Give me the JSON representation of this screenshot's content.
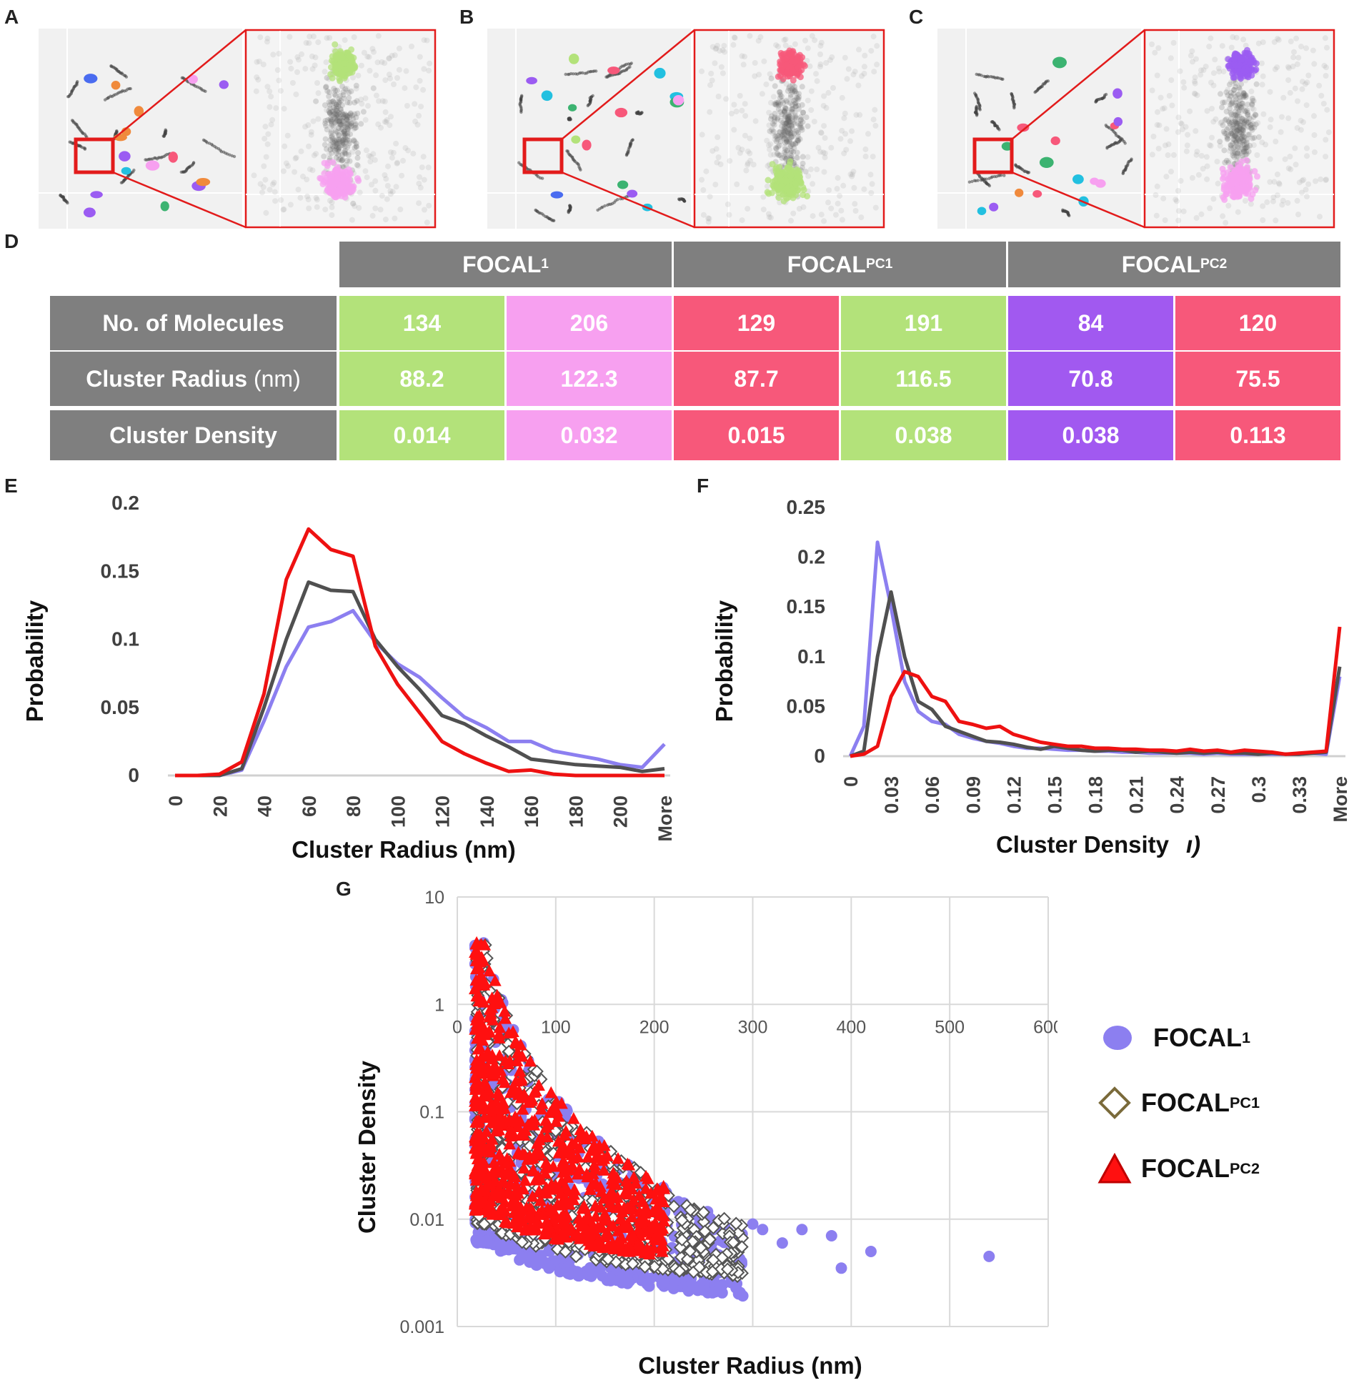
{
  "panels": {
    "A": "A",
    "B": "B",
    "C": "C",
    "D": "D",
    "E": "E",
    "F": "F",
    "G": "G"
  },
  "micrographs": [
    {
      "label": "A",
      "top_color": "#b3e27a",
      "bottom_color": "#f7a0f0"
    },
    {
      "label": "B",
      "top_color": "#f7587a",
      "bottom_color": "#b3e27a"
    },
    {
      "label": "C",
      "top_color": "#9b5cf2",
      "bottom_color": "#f7a0f0"
    }
  ],
  "table": {
    "groups": [
      {
        "name": "FOCAL",
        "sup": "1"
      },
      {
        "name": "FOCAL",
        "sup": "PC1"
      },
      {
        "name": "FOCAL",
        "sup": "PC2"
      }
    ],
    "rows": [
      {
        "label": "No. of Molecules",
        "unit": "",
        "values": [
          "134",
          "206",
          "129",
          "191",
          "84",
          "120"
        ]
      },
      {
        "label": "Cluster Radius",
        "unit": " (nm)",
        "values": [
          "88.2",
          "122.3",
          "87.7",
          "116.5",
          "70.8",
          "75.5"
        ]
      },
      {
        "label": "Cluster Density",
        "unit": "",
        "values": [
          "0.014",
          "0.032",
          "0.015",
          "0.038",
          "0.038",
          "0.113"
        ]
      }
    ],
    "cell_colors": [
      "#b3e27a",
      "#f7a0f0",
      "#f7587a",
      "#b3e27a",
      "#a159f0",
      "#f7587a"
    ],
    "header_color": "#7f7f7f"
  },
  "chart_data": [
    {
      "panel": "E",
      "type": "line",
      "title": "",
      "xlabel": "Cluster Radius (nm)",
      "ylabel": "Probability",
      "categories": [
        "0",
        "10",
        "20",
        "30",
        "40",
        "50",
        "60",
        "70",
        "80",
        "90",
        "100",
        "110",
        "120",
        "130",
        "140",
        "150",
        "160",
        "170",
        "180",
        "190",
        "200",
        "210",
        "More"
      ],
      "tick_labels": [
        "0",
        "20",
        "40",
        "60",
        "80",
        "100",
        "120",
        "140",
        "160",
        "180",
        "200",
        "More"
      ],
      "ylim": [
        0,
        0.2
      ],
      "yticks": [
        "0",
        "0.05",
        "0.1",
        "0.15",
        "0.2"
      ],
      "series": [
        {
          "name": "FOCAL1",
          "color": "#8c7ff0",
          "values": [
            0,
            0,
            0,
            0.004,
            0.04,
            0.08,
            0.109,
            0.113,
            0.121,
            0.098,
            0.082,
            0.072,
            0.057,
            0.043,
            0.035,
            0.025,
            0.025,
            0.018,
            0.015,
            0.012,
            0.008,
            0.006,
            0.023
          ]
        },
        {
          "name": "FOCALPC1",
          "color": "#505050",
          "values": [
            0,
            0,
            0,
            0.005,
            0.05,
            0.1,
            0.142,
            0.136,
            0.135,
            0.1,
            0.08,
            0.063,
            0.044,
            0.038,
            0.029,
            0.021,
            0.012,
            0.01,
            0.008,
            0.007,
            0.006,
            0.003,
            0.005
          ]
        },
        {
          "name": "FOCALPC2",
          "color": "#ee1111",
          "values": [
            0,
            0,
            0.001,
            0.01,
            0.06,
            0.144,
            0.181,
            0.166,
            0.161,
            0.095,
            0.067,
            0.046,
            0.025,
            0.016,
            0.009,
            0.003,
            0.004,
            0.001,
            0,
            0,
            0,
            0,
            0
          ]
        }
      ]
    },
    {
      "panel": "F",
      "type": "line",
      "title": "",
      "xlabel": "Cluster Density",
      "xlabel_suffix": "ı)",
      "ylabel": "Probability",
      "tick_labels": [
        "0",
        "0.03",
        "0.06",
        "0.09",
        "0.12",
        "0.15",
        "0.18",
        "0.21",
        "0.24",
        "0.27",
        "0.3",
        "0.33",
        "More"
      ],
      "ylim": [
        0,
        0.25
      ],
      "yticks": [
        "0",
        "0.05",
        "0.1",
        "0.15",
        "0.2",
        "0.25"
      ],
      "x_count": 37,
      "series": [
        {
          "name": "FOCAL1",
          "color": "#8c7ff0",
          "values": [
            0,
            0.03,
            0.215,
            0.15,
            0.075,
            0.045,
            0.035,
            0.032,
            0.022,
            0.018,
            0.015,
            0.013,
            0.01,
            0.008,
            0.008,
            0.007,
            0.006,
            0.006,
            0.005,
            0.005,
            0.004,
            0.004,
            0.003,
            0.003,
            0.003,
            0.003,
            0.002,
            0.003,
            0.002,
            0.002,
            0.002,
            0.002,
            0.002,
            0.002,
            0.003,
            0.002,
            0.08
          ]
        },
        {
          "name": "FOCALPC1",
          "color": "#505050",
          "values": [
            0,
            0.005,
            0.1,
            0.165,
            0.1,
            0.055,
            0.047,
            0.03,
            0.025,
            0.02,
            0.015,
            0.014,
            0.012,
            0.009,
            0.007,
            0.01,
            0.008,
            0.006,
            0.005,
            0.006,
            0.006,
            0.004,
            0.005,
            0.004,
            0.003,
            0.004,
            0.003,
            0.004,
            0.003,
            0.003,
            0.002,
            0.003,
            0.002,
            0.002,
            0.003,
            0.004,
            0.09
          ]
        },
        {
          "name": "FOCALPC2",
          "color": "#ee1111",
          "values": [
            0,
            0.002,
            0.01,
            0.06,
            0.085,
            0.08,
            0.06,
            0.055,
            0.035,
            0.032,
            0.028,
            0.03,
            0.022,
            0.018,
            0.014,
            0.012,
            0.01,
            0.01,
            0.008,
            0.008,
            0.007,
            0.007,
            0.006,
            0.006,
            0.005,
            0.007,
            0.005,
            0.006,
            0.004,
            0.006,
            0.005,
            0.004,
            0.002,
            0.003,
            0.004,
            0.005,
            0.13
          ]
        }
      ]
    },
    {
      "panel": "G",
      "type": "scatter",
      "title": "",
      "xlabel": "Cluster Radius (nm)",
      "ylabel": "Cluster Density",
      "xlim": [
        0,
        600
      ],
      "xticks": [
        "0",
        "100",
        "200",
        "300",
        "400",
        "500",
        "600"
      ],
      "ylim_log": [
        0.001,
        10
      ],
      "yticks": [
        "10",
        "1",
        "0.1",
        "0.01",
        "0.001"
      ],
      "series": [
        {
          "name": "FOCAL",
          "sup": "1",
          "marker": "circle",
          "color": "#8c7ff0"
        },
        {
          "name": "FOCAL",
          "sup": "PC1",
          "marker": "diamond",
          "color": "#555555"
        },
        {
          "name": "FOCAL",
          "sup": "PC2",
          "marker": "triangle",
          "color": "#ff1010"
        }
      ],
      "notable_points": [
        [
          540,
          0.0045
        ],
        [
          420,
          0.005
        ],
        [
          390,
          0.0035
        ],
        [
          380,
          0.007
        ],
        [
          350,
          0.008
        ],
        [
          330,
          0.006
        ],
        [
          310,
          0.008
        ],
        [
          300,
          0.009
        ],
        [
          280,
          0.006
        ],
        [
          260,
          0.008
        ]
      ]
    }
  ]
}
